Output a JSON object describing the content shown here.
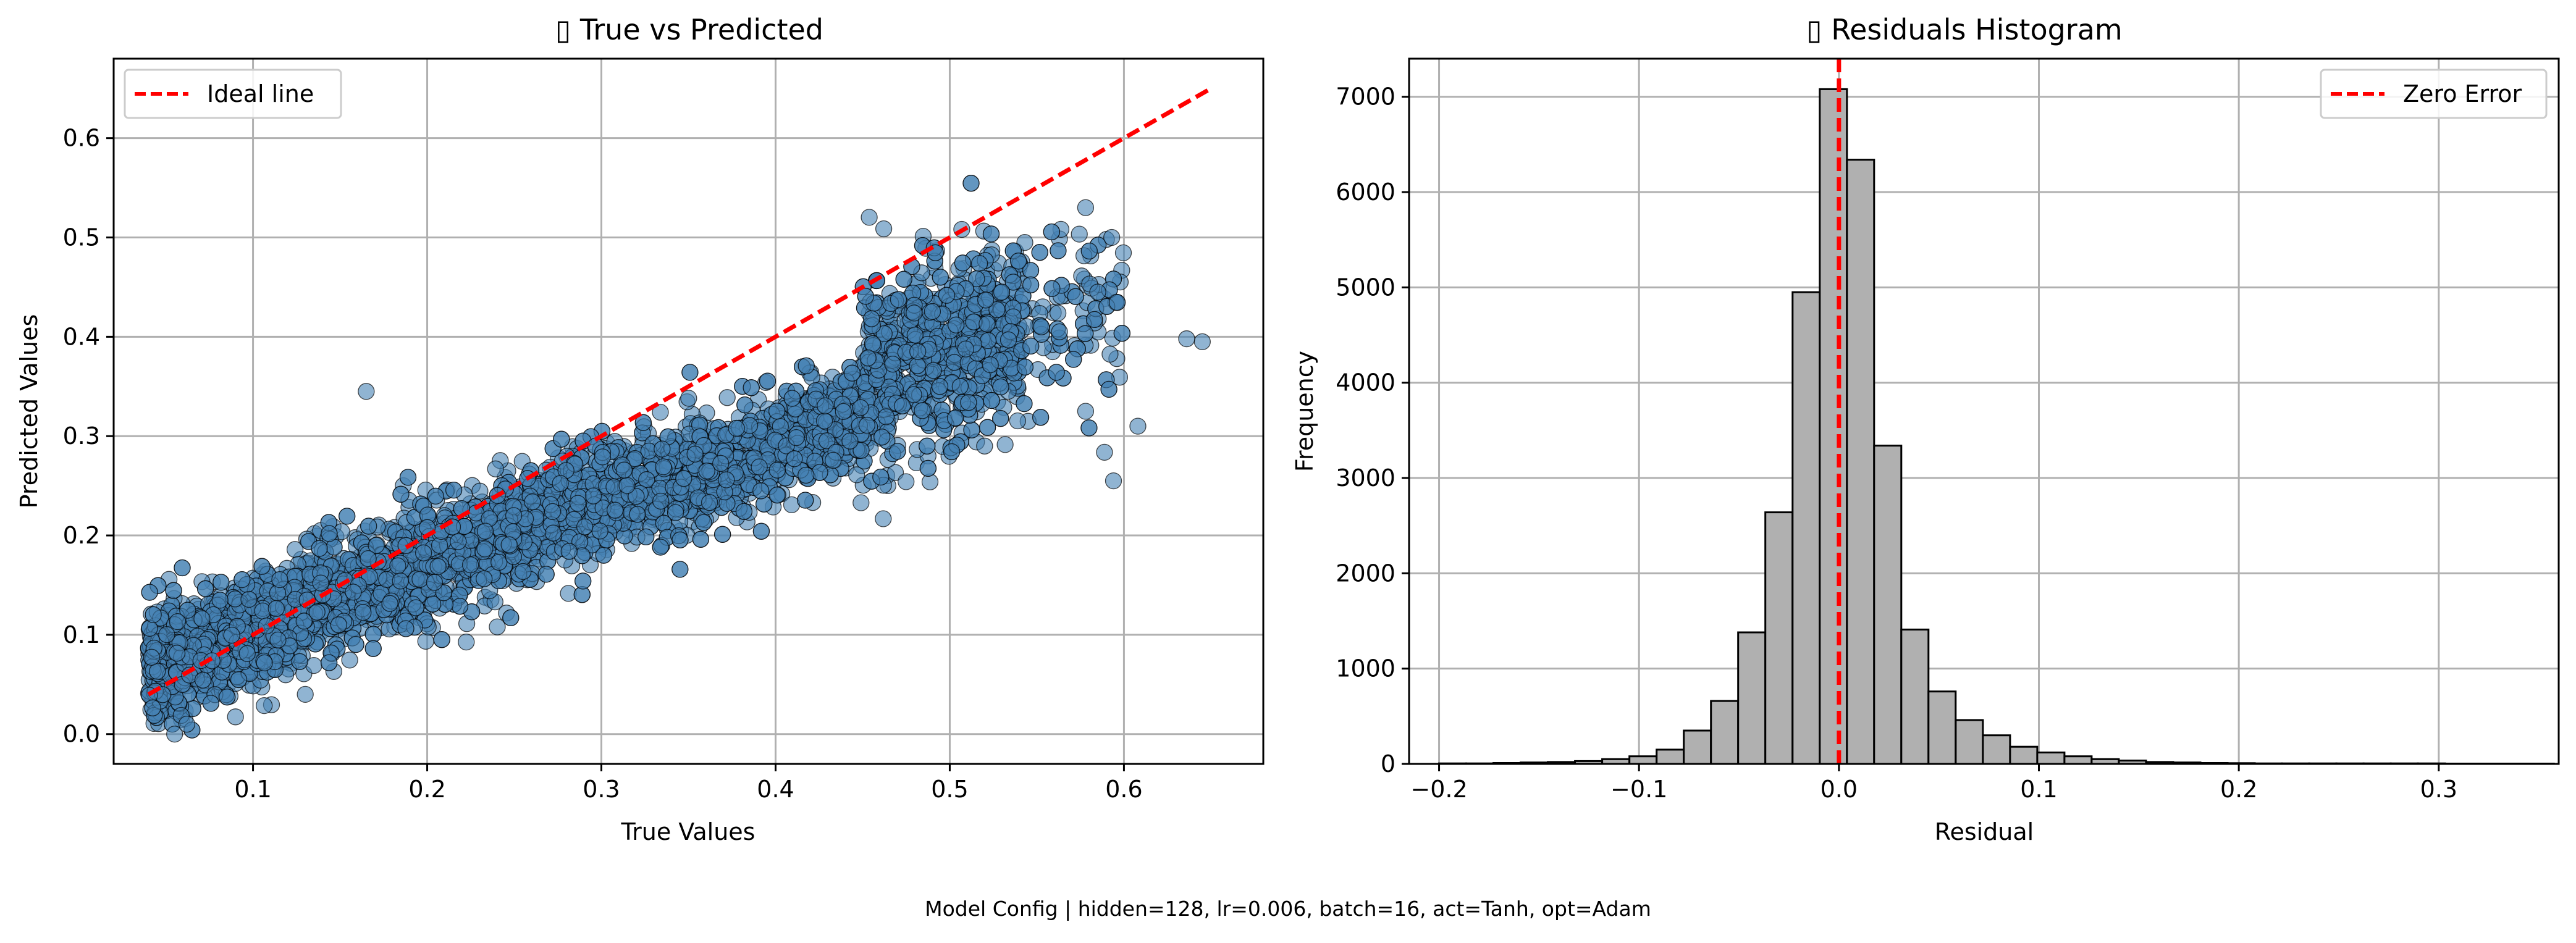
{
  "chart_data": [
    {
      "type": "scatter",
      "title": "▯ True vs Predicted",
      "xlabel": "True Values",
      "ylabel": "Predicted Values",
      "xlim": [
        0.02,
        0.68
      ],
      "ylim": [
        -0.03,
        0.68
      ],
      "xticks": [
        0.1,
        0.2,
        0.3,
        0.4,
        0.5,
        0.6
      ],
      "xtick_labels": [
        "0.1",
        "0.2",
        "0.3",
        "0.4",
        "0.5",
        "0.6"
      ],
      "yticks": [
        0.0,
        0.1,
        0.2,
        0.3,
        0.4,
        0.5,
        0.6
      ],
      "ytick_labels": [
        "0.0",
        "0.1",
        "0.2",
        "0.3",
        "0.4",
        "0.5",
        "0.6"
      ],
      "grid": true,
      "legend": {
        "placement": "top-left",
        "entries": [
          "Ideal line"
        ]
      },
      "point_color": "#4682b4",
      "point_edge_color": "#000000",
      "ideal_line": {
        "name": "Ideal line",
        "color": "#ff0000",
        "style": "dashed",
        "x": [
          0.04,
          0.65
        ],
        "y": [
          0.04,
          0.65
        ]
      },
      "points_note": "dense cloud of ~30000 points along y ≈ 0.1 + 0.65x band",
      "outliers": [
        {
          "x": 0.645,
          "y": 0.395
        },
        {
          "x": 0.636,
          "y": 0.398
        },
        {
          "x": 0.608,
          "y": 0.31
        },
        {
          "x": 0.594,
          "y": 0.255
        },
        {
          "x": 0.578,
          "y": 0.325
        },
        {
          "x": 0.563,
          "y": 0.405
        },
        {
          "x": 0.585,
          "y": 0.445
        },
        {
          "x": 0.593,
          "y": 0.5
        },
        {
          "x": 0.578,
          "y": 0.53
        },
        {
          "x": 0.52,
          "y": 0.29
        },
        {
          "x": 0.506,
          "y": 0.35
        },
        {
          "x": 0.165,
          "y": 0.345
        },
        {
          "x": 0.13,
          "y": 0.04
        },
        {
          "x": 0.055,
          "y": 0.0
        },
        {
          "x": 0.062,
          "y": 0.01
        }
      ]
    },
    {
      "type": "bar",
      "title": "▯ Residuals Histogram",
      "xlabel": "Residual",
      "ylabel": "Frequency",
      "xlim": [
        -0.215,
        0.36
      ],
      "ylim": [
        0,
        7400
      ],
      "xticks": [
        -0.2,
        -0.1,
        0.0,
        0.1,
        0.2,
        0.3
      ],
      "xtick_labels": [
        "−0.2",
        "−0.1",
        "0.0",
        "0.1",
        "0.2",
        "0.3"
      ],
      "yticks": [
        0,
        1000,
        2000,
        3000,
        4000,
        5000,
        6000,
        7000
      ],
      "ytick_labels": [
        "0",
        "1000",
        "2000",
        "3000",
        "4000",
        "5000",
        "6000",
        "7000"
      ],
      "grid": true,
      "legend": {
        "placement": "top-right",
        "entries": [
          "Zero Error"
        ]
      },
      "bar_color": "#b0b0b0",
      "bar_edge_color": "#000000",
      "bin_start": -0.2,
      "bin_width": 0.0136,
      "values": [
        5,
        5,
        10,
        15,
        20,
        30,
        50,
        80,
        150,
        350,
        660,
        1380,
        2640,
        4950,
        7080,
        6340,
        3340,
        1410,
        760,
        460,
        300,
        180,
        120,
        80,
        50,
        35,
        20,
        15,
        10,
        8,
        5,
        5,
        5,
        5,
        5,
        5,
        5,
        3,
        3,
        3,
        3
      ],
      "zero_line": {
        "name": "Zero Error",
        "color": "#ff0000",
        "style": "dashed",
        "x": 0.0
      }
    }
  ],
  "footer": {
    "caption": "Model Config | hidden=128, lr=0.006, batch=16, act=Tanh, opt=Adam"
  }
}
